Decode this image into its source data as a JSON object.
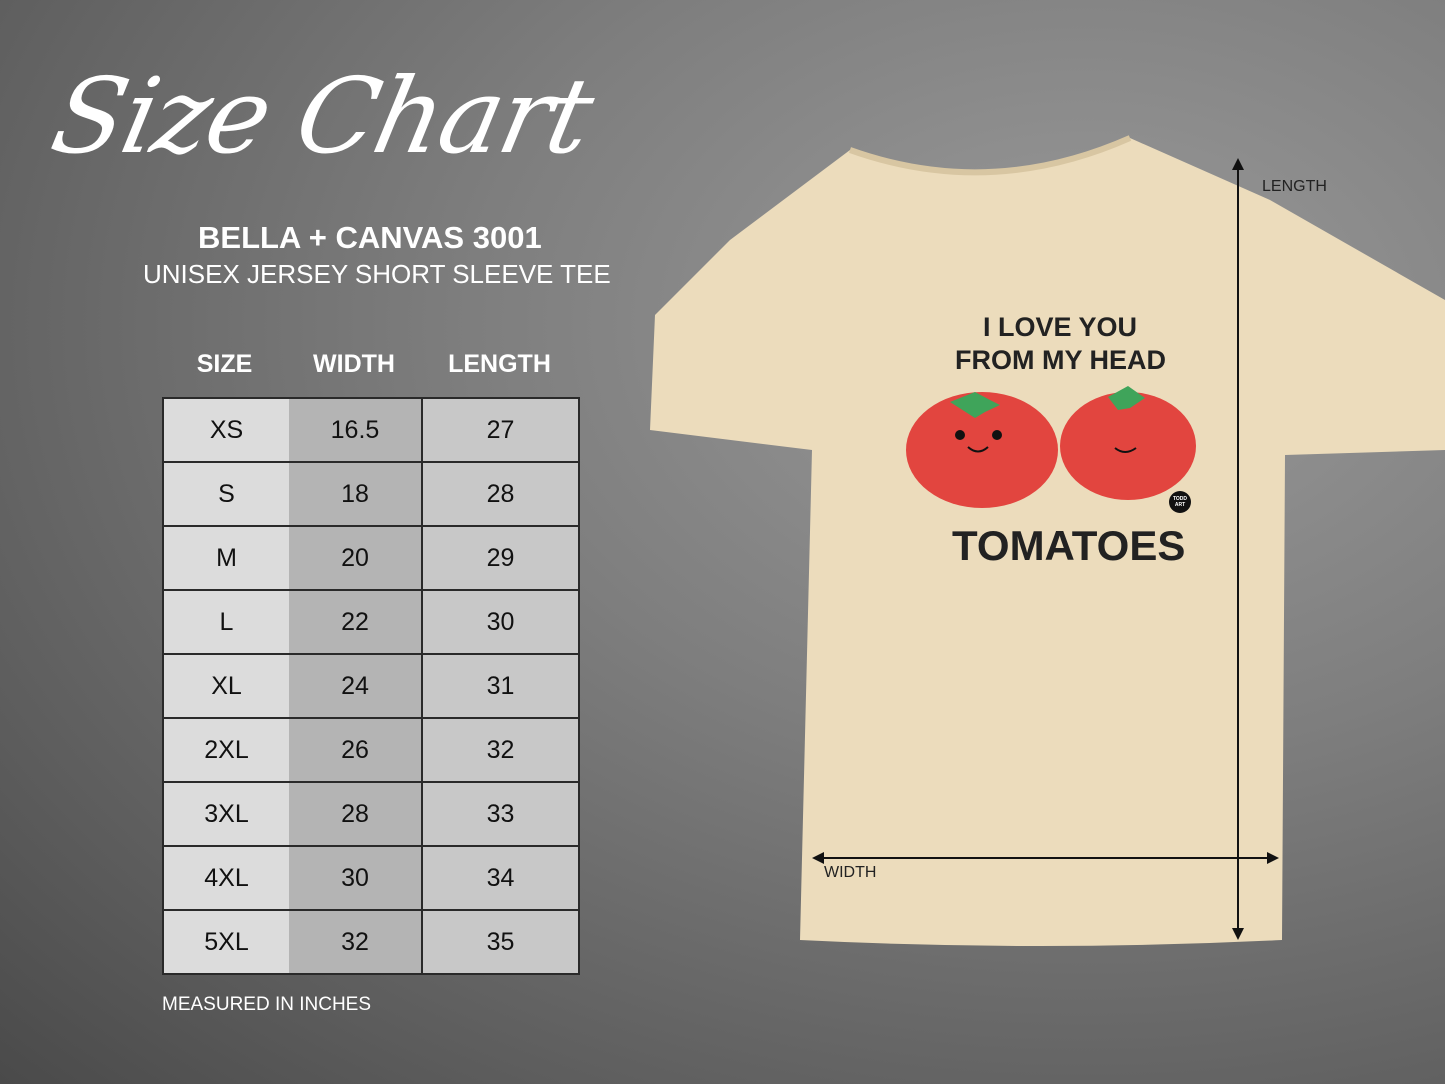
{
  "header": {
    "title": "Size Chart",
    "brand": "BELLA + CANVAS 3001",
    "subtitle": "UNISEX JERSEY SHORT SLEEVE TEE"
  },
  "table": {
    "columns": [
      "SIZE",
      "WIDTH",
      "LENGTH"
    ],
    "rows": [
      [
        "XS",
        "16.5",
        "27"
      ],
      [
        "S",
        "18",
        "28"
      ],
      [
        "M",
        "20",
        "29"
      ],
      [
        "L",
        "22",
        "30"
      ],
      [
        "XL",
        "24",
        "31"
      ],
      [
        "2XL",
        "26",
        "32"
      ],
      [
        "3XL",
        "28",
        "33"
      ],
      [
        "4XL",
        "30",
        "34"
      ],
      [
        "5XL",
        "32",
        "35"
      ]
    ]
  },
  "note": "MEASURED IN INCHES",
  "shirt": {
    "color": "#ecdcbc",
    "print_line1": "I LOVE YOU",
    "print_line2": "FROM MY HEAD",
    "print_line3": "TOMATOES",
    "logo": "TODD ART",
    "length_label": "LENGTH",
    "width_label": "WIDTH"
  },
  "colors": {
    "tomato": "#e2453f",
    "leaf": "#3fa45a"
  }
}
